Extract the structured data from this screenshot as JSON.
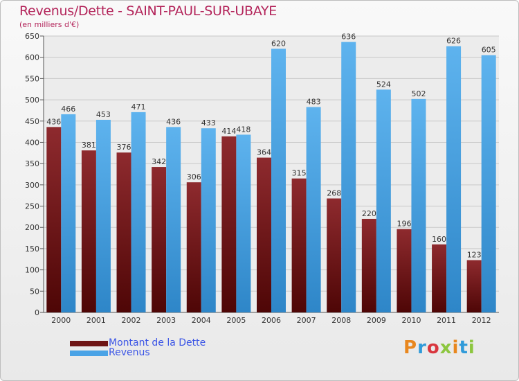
{
  "chart_data": {
    "type": "bar",
    "title": "Revenus/Dette - SAINT-PAUL-SUR-UBAYE",
    "subtitle": "(en milliers d'€)",
    "categories": [
      "2000",
      "2001",
      "2002",
      "2003",
      "2004",
      "2005",
      "2006",
      "2007",
      "2008",
      "2009",
      "2010",
      "2011",
      "2012"
    ],
    "series": [
      {
        "name": "Montant de la Dette",
        "color": "#7a1a1a",
        "values": [
          436,
          381,
          376,
          342,
          306,
          414,
          364,
          315,
          268,
          220,
          196,
          160,
          123
        ]
      },
      {
        "name": "Revenus",
        "color": "#4aa3e6",
        "values": [
          466,
          453,
          471,
          436,
          433,
          418,
          620,
          483,
          636,
          524,
          502,
          626,
          605
        ]
      }
    ],
    "ylim": [
      0,
      650
    ],
    "yticks": [
      0,
      50,
      100,
      150,
      200,
      250,
      300,
      350,
      400,
      450,
      500,
      550,
      600,
      650
    ],
    "grid": true,
    "legend": {
      "position": "bottom-left"
    },
    "xlabel": "",
    "ylabel": ""
  },
  "logo": {
    "text": "Proxiti",
    "colors": [
      "#e8871e",
      "#2f9ad9",
      "#d9363e",
      "#8cc63f",
      "#e8871e",
      "#2f9ad9",
      "#8cc63f"
    ]
  }
}
